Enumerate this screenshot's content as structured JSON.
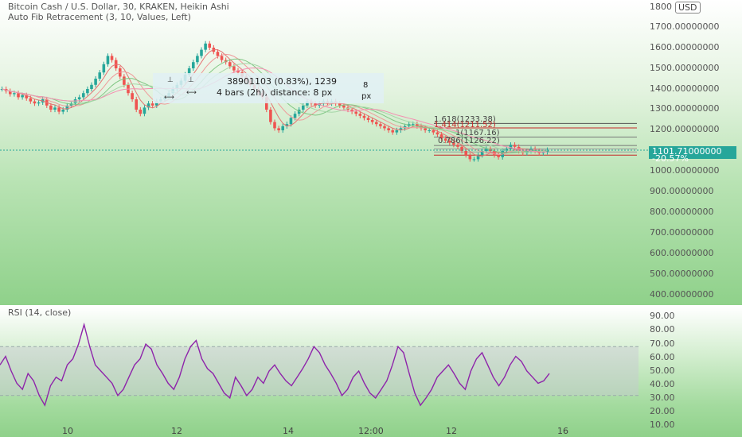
{
  "header": {
    "symbol_line": "Bitcoin Cash / U.S. Dollar, 30, KRAKEN, Heikin Ashi",
    "indicator_line": "Auto Fib Retracement (3, 10, Values, Left)",
    "currency_button": "USD"
  },
  "price_axis": {
    "labels": [
      "1800",
      "1700.00000000",
      "1600.00000000",
      "1500.00000000",
      "1400.00000000",
      "1300.00000000",
      "1200.00000000",
      "1000.00000000",
      "900.00000000",
      "800.00000000",
      "700.00000000",
      "600.00000000",
      "500.00000000",
      "400.00000000"
    ],
    "current_price": "1101.71000000",
    "current_change": "-20.57%"
  },
  "fib_levels": [
    "1.618(1233.38)",
    "1.414(1211.52)",
    "1(1167.16)",
    "0.786(1126.22)"
  ],
  "measure_tooltip": {
    "line1": "38901103 (0.83%), 1239",
    "line2": "4 bars (2h), distance: 8 px",
    "side_top": "8",
    "side_bottom": "px"
  },
  "rsi": {
    "title": "RSI (14, close)",
    "axis_labels": [
      "90.00",
      "80.00",
      "70.00",
      "60.00",
      "50.00",
      "40.00",
      "30.00",
      "20.00",
      "10.00"
    ]
  },
  "time_axis": {
    "labels": [
      "10",
      "12",
      "14",
      "12:00",
      "12",
      "16"
    ]
  },
  "chart_data": {
    "type": "candlestick",
    "title": "Bitcoin Cash / U.S. Dollar, 30, KRAKEN, Heikin Ashi",
    "ylim": [
      400,
      1800
    ],
    "close_series": [
      1400,
      1390,
      1375,
      1380,
      1360,
      1370,
      1355,
      1340,
      1330,
      1335,
      1350,
      1320,
      1300,
      1310,
      1290,
      1300,
      1320,
      1330,
      1350,
      1360,
      1380,
      1400,
      1420,
      1450,
      1480,
      1520,
      1560,
      1540,
      1500,
      1460,
      1420,
      1380,
      1350,
      1300,
      1280,
      1310,
      1330,
      1320,
      1340,
      1350,
      1360,
      1380,
      1400,
      1420,
      1440,
      1470,
      1500,
      1530,
      1560,
      1590,
      1620,
      1600,
      1580,
      1560,
      1540,
      1530,
      1510,
      1490,
      1480,
      1460,
      1440,
      1420,
      1400,
      1380,
      1360,
      1300,
      1240,
      1210,
      1200,
      1220,
      1230,
      1260,
      1280,
      1300,
      1320,
      1340,
      1330,
      1320,
      1330,
      1340,
      1330,
      1340,
      1330,
      1320,
      1310,
      1300,
      1290,
      1280,
      1270,
      1260,
      1250,
      1240,
      1230,
      1220,
      1210,
      1200,
      1190,
      1200,
      1210,
      1220,
      1230,
      1230,
      1220,
      1210,
      1200,
      1200,
      1190,
      1180,
      1160,
      1150,
      1140,
      1130,
      1120,
      1100,
      1080,
      1060,
      1060,
      1080,
      1100,
      1110,
      1100,
      1080,
      1070,
      1100,
      1110,
      1130,
      1120,
      1100,
      1090,
      1100,
      1110,
      1100,
      1090,
      1095,
      1105
    ],
    "rsi_series": [
      55,
      62,
      50,
      40,
      35,
      48,
      42,
      30,
      22,
      38,
      45,
      42,
      55,
      60,
      72,
      88,
      70,
      55,
      50,
      45,
      40,
      30,
      35,
      45,
      55,
      60,
      72,
      68,
      55,
      48,
      40,
      35,
      45,
      60,
      70,
      75,
      60,
      52,
      48,
      40,
      32,
      28,
      45,
      38,
      30,
      35,
      45,
      40,
      50,
      55,
      48,
      42,
      38,
      45,
      52,
      60,
      70,
      65,
      55,
      48,
      40,
      30,
      35,
      45,
      50,
      40,
      32,
      28,
      35,
      42,
      55,
      70,
      65,
      48,
      32,
      22,
      28,
      35,
      45,
      50,
      55,
      48,
      40,
      35,
      50,
      60,
      65,
      55,
      45,
      38,
      45,
      55,
      62,
      58,
      50,
      45,
      40,
      42,
      48
    ],
    "rsi_ylim": [
      0,
      100
    ],
    "rsi_band": [
      30,
      70
    ]
  }
}
